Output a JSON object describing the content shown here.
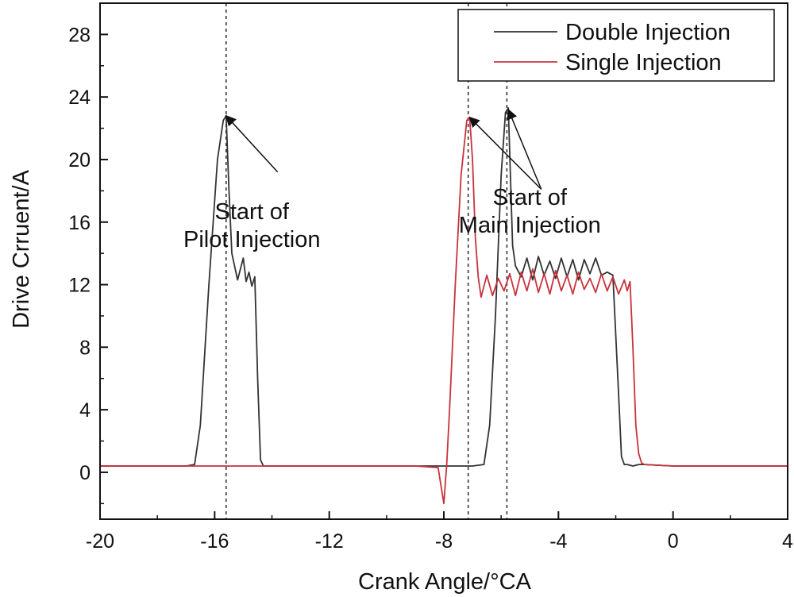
{
  "chart_data": {
    "type": "line",
    "xlabel": "Crank Angle/°CA",
    "ylabel": "Drive Crruent/A",
    "xlim": [
      -20,
      4
    ],
    "ylim": [
      -3,
      30
    ],
    "xticks": [
      -20,
      -16,
      -12,
      -8,
      -4,
      0,
      4
    ],
    "yticks": [
      0,
      4,
      8,
      12,
      16,
      20,
      24,
      28
    ],
    "grid": false,
    "legend_position": "top-right",
    "series": [
      {
        "name": "Double Injection",
        "color": "#333333",
        "x": [
          -20,
          -17,
          -16.7,
          -16.5,
          -16.2,
          -15.9,
          -15.7,
          -15.6,
          -15.5,
          -15.4,
          -15.2,
          -15.0,
          -14.9,
          -14.8,
          -14.7,
          -14.6,
          -14.5,
          -14.4,
          -14.3,
          -14.2,
          -12,
          -9,
          -8,
          -7,
          -6.6,
          -6.4,
          -6.2,
          -6.0,
          -5.85,
          -5.75,
          -5.6,
          -5.5,
          -5.3,
          -5.1,
          -4.9,
          -4.7,
          -4.5,
          -4.3,
          -4.1,
          -3.9,
          -3.7,
          -3.5,
          -3.3,
          -3.1,
          -2.9,
          -2.7,
          -2.5,
          -2.3,
          -2.1,
          -1.9,
          -1.8,
          -1.7,
          -1.6,
          -1.4,
          -1.2,
          -1.0,
          0,
          1,
          2,
          3,
          4
        ],
        "y": [
          0.4,
          0.4,
          0.5,
          3.0,
          12.0,
          20.0,
          22.5,
          22.8,
          18.0,
          14.0,
          12.3,
          13.7,
          12.2,
          12.8,
          11.9,
          12.5,
          6.0,
          0.8,
          0.4,
          0.4,
          0.4,
          0.4,
          0.4,
          0.4,
          0.5,
          3.0,
          10.0,
          19.0,
          23.0,
          23.3,
          14.5,
          13.2,
          12.5,
          13.7,
          12.3,
          13.8,
          12.6,
          13.5,
          12.4,
          13.7,
          12.5,
          13.6,
          12.3,
          13.6,
          12.7,
          13.7,
          12.6,
          12.8,
          12.6,
          5.0,
          1.0,
          0.5,
          0.5,
          0.4,
          0.5,
          0.5,
          0.4,
          0.4,
          0.4,
          0.4,
          0.4
        ]
      },
      {
        "name": "Single Injection",
        "color": "#c8323c",
        "x": [
          -20,
          -16,
          -12,
          -9,
          -8.2,
          -8.0,
          -7.9,
          -7.8,
          -7.6,
          -7.4,
          -7.2,
          -7.1,
          -7.0,
          -6.9,
          -6.8,
          -6.7,
          -6.5,
          -6.3,
          -6.1,
          -5.9,
          -5.7,
          -5.5,
          -5.3,
          -5.1,
          -4.9,
          -4.7,
          -4.5,
          -4.3,
          -4.1,
          -3.9,
          -3.7,
          -3.5,
          -3.3,
          -3.1,
          -2.9,
          -2.7,
          -2.5,
          -2.3,
          -2.1,
          -1.9,
          -1.7,
          -1.6,
          -1.5,
          -1.4,
          -1.3,
          -1.2,
          -1.1,
          -1.0,
          0,
          1,
          2,
          3,
          4
        ],
        "y": [
          0.4,
          0.4,
          0.4,
          0.4,
          0.3,
          -2.0,
          0.5,
          4.0,
          12.0,
          19.0,
          22.5,
          22.7,
          20.0,
          15.0,
          12.5,
          11.2,
          12.6,
          11.3,
          12.4,
          11.6,
          12.7,
          11.3,
          12.8,
          11.6,
          13.0,
          11.5,
          12.7,
          11.4,
          12.9,
          11.6,
          12.6,
          11.4,
          12.8,
          11.7,
          12.4,
          11.5,
          12.7,
          11.6,
          12.5,
          11.4,
          12.3,
          11.6,
          12.2,
          8.0,
          3.0,
          1.2,
          0.6,
          0.5,
          0.4,
          0.4,
          0.4,
          0.4,
          0.4
        ]
      }
    ],
    "reference_lines": [
      {
        "x": -15.6,
        "style": "dashed"
      },
      {
        "x": -7.15,
        "style": "dashed"
      },
      {
        "x": -5.8,
        "style": "dashed"
      }
    ],
    "annotations": [
      {
        "lines": [
          "Start of",
          "Pilot Injection"
        ],
        "text_at": [
          -14.7,
          16.2
        ],
        "arrows_to": [
          [
            -15.6,
            22.8
          ]
        ],
        "arrows_from": [
          [
            -13.8,
            19.2
          ]
        ]
      },
      {
        "lines": [
          "Start of",
          "Main Injection"
        ],
        "text_at": [
          -5.0,
          17.1
        ],
        "arrows_to": [
          [
            -7.1,
            22.7
          ],
          [
            -5.75,
            23.2
          ]
        ],
        "arrows_from": [
          [
            -4.6,
            18.1
          ],
          [
            -4.6,
            18.1
          ]
        ]
      }
    ]
  }
}
